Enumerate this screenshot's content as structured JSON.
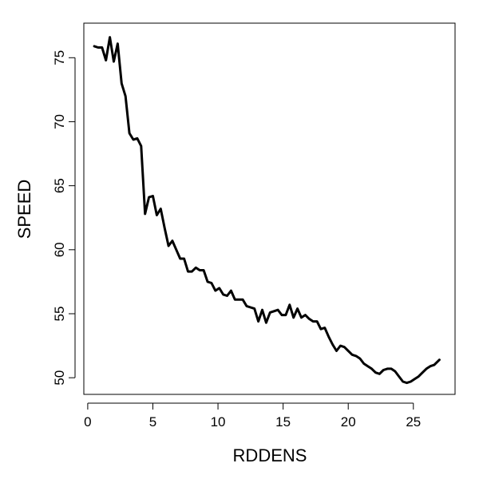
{
  "chart_data": {
    "type": "line",
    "title": "",
    "xlabel": "RDDENS",
    "ylabel": "SPEED",
    "xlim": [
      -0.3,
      28.2
    ],
    "ylim": [
      48.7,
      77.7
    ],
    "xticks": [
      0,
      5,
      10,
      15,
      20,
      25
    ],
    "yticks": [
      50,
      55,
      60,
      65,
      70,
      75
    ],
    "grid": false,
    "legend": "none",
    "line_color": "#000000",
    "series": [
      {
        "x": [
          0.5,
          0.8,
          1.1,
          1.4,
          1.7,
          2.0,
          2.3,
          2.6,
          2.9,
          3.2,
          3.5,
          3.8,
          4.1,
          4.4,
          4.7,
          5.0,
          5.3,
          5.6,
          5.9,
          6.2,
          6.5,
          6.8,
          7.1,
          7.4,
          7.7,
          8.0,
          8.3,
          8.6,
          8.9,
          9.2,
          9.5,
          9.8,
          10.1,
          10.4,
          10.7,
          11.0,
          11.3,
          11.6,
          11.9,
          12.2,
          12.5,
          12.8,
          13.1,
          13.4,
          13.7,
          14.0,
          14.3,
          14.6,
          14.9,
          15.2,
          15.5,
          15.8,
          16.1,
          16.4,
          16.7,
          17.0,
          17.3,
          17.6,
          17.9,
          18.2,
          18.5,
          18.8,
          19.1,
          19.4,
          19.7,
          20.0,
          20.3,
          20.6,
          20.9,
          21.2,
          21.5,
          21.8,
          22.1,
          22.4,
          22.7,
          23.0,
          23.3,
          23.6,
          23.9,
          24.2,
          24.5,
          24.8,
          25.1,
          25.4,
          25.7,
          26.0,
          26.3,
          26.6,
          27.0
        ],
        "y": [
          75.9,
          75.8,
          75.8,
          74.8,
          76.6,
          74.7,
          76.1,
          73.0,
          72.0,
          69.1,
          68.6,
          68.7,
          68.1,
          62.8,
          64.1,
          64.2,
          62.7,
          63.2,
          61.7,
          60.3,
          60.7,
          60.0,
          59.3,
          59.3,
          58.3,
          58.3,
          58.6,
          58.4,
          58.4,
          57.5,
          57.4,
          56.8,
          57.0,
          56.5,
          56.4,
          56.8,
          56.1,
          56.1,
          56.1,
          55.6,
          55.5,
          55.4,
          54.4,
          55.3,
          54.3,
          55.1,
          55.2,
          55.3,
          54.9,
          54.9,
          55.7,
          54.7,
          55.4,
          54.7,
          54.9,
          54.6,
          54.4,
          54.4,
          53.8,
          53.9,
          53.2,
          52.6,
          52.1,
          52.5,
          52.4,
          52.1,
          51.8,
          51.7,
          51.5,
          51.1,
          50.9,
          50.7,
          50.4,
          50.3,
          50.6,
          50.7,
          50.7,
          50.5,
          50.1,
          49.7,
          49.6,
          49.7,
          49.9,
          50.1,
          50.4,
          50.7,
          50.9,
          51.0,
          51.4
        ]
      }
    ]
  }
}
